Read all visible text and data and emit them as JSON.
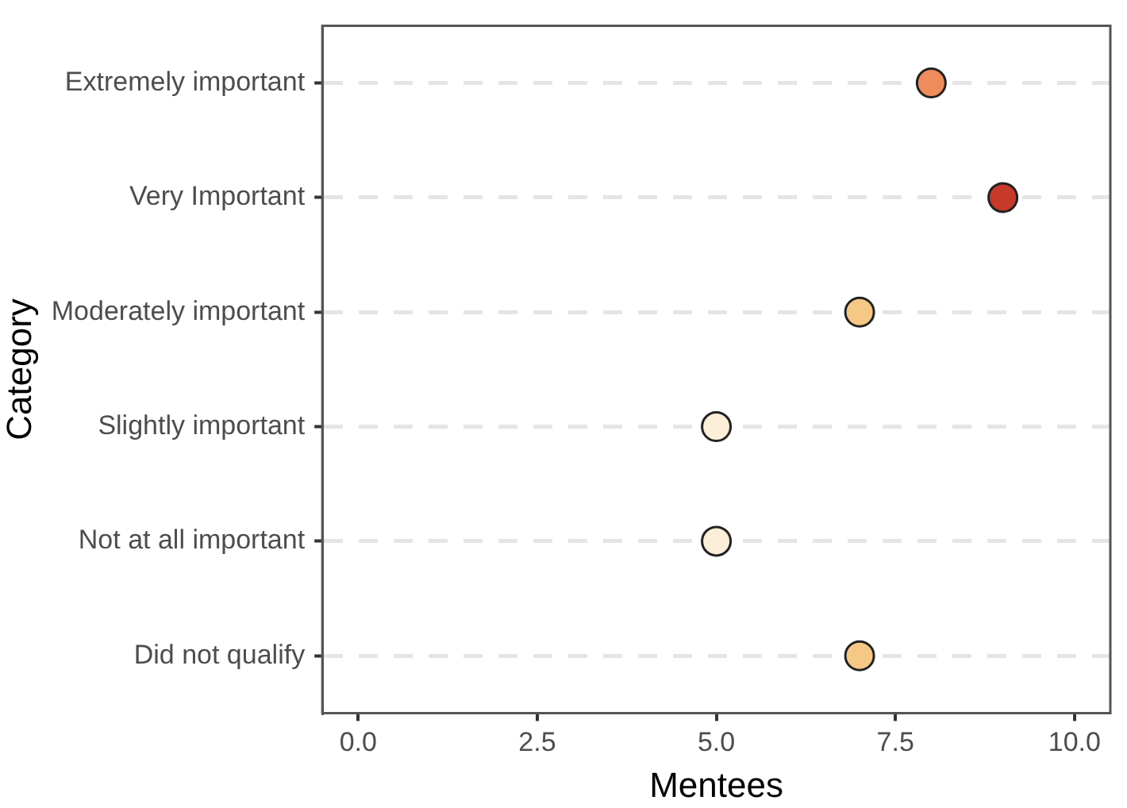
{
  "chart_data": {
    "type": "scatter",
    "orientation": "horizontal",
    "categories": [
      "Extremely important",
      "Very Important",
      "Moderately important",
      "Slightly important",
      "Not at all important",
      "Did not qualify"
    ],
    "values": [
      8,
      9,
      7,
      5,
      5,
      7
    ],
    "colors": [
      "#ee8c5b",
      "#c8392a",
      "#f6c886",
      "#fcefd9",
      "#fcefd9",
      "#f6c886"
    ],
    "xlabel": "Mentees",
    "ylabel": "Category",
    "xlim": [
      -0.5,
      10.5
    ],
    "xticks": [
      {
        "value": 0,
        "label": "0.0"
      },
      {
        "value": 2.5,
        "label": "2.5"
      },
      {
        "value": 5,
        "label": "5.0"
      },
      {
        "value": 7.5,
        "label": "7.5"
      },
      {
        "value": 10,
        "label": "10.0"
      }
    ],
    "grid": "y",
    "marker": "circle",
    "legend": false
  }
}
